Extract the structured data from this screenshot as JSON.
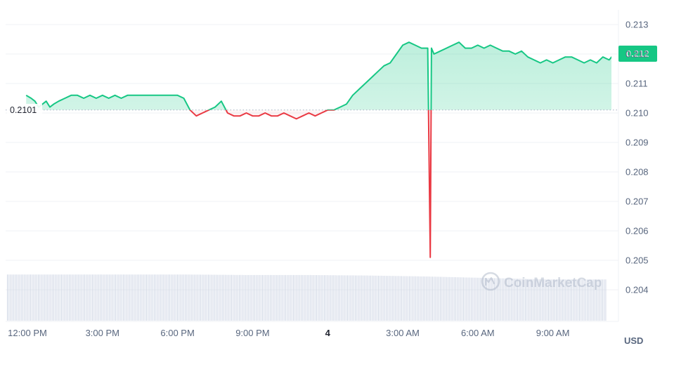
{
  "brand": {
    "watermark": "CoinMarketCap",
    "watermark_icon": "coinmarketcap-logo-icon"
  },
  "currency_label": "USD",
  "baseline_label": "0.2101",
  "current_price_label": "0.212",
  "colors": {
    "up": "#16c784",
    "down": "#ea3943",
    "volume": "#cfd6e4",
    "grid": "#eff2f5",
    "axis_text": "#58667e"
  },
  "chart_data": {
    "type": "line",
    "title": "",
    "xlabel": "",
    "ylabel": "",
    "x_ticks": [
      "12:00 PM",
      "3:00 PM",
      "6:00 PM",
      "9:00 PM",
      "4",
      "3:00 AM",
      "6:00 AM",
      "9:00 AM"
    ],
    "x_tick_hours": [
      0,
      3,
      6,
      9,
      12,
      15,
      18,
      21
    ],
    "y_ticks": [
      "0.213",
      "0.212",
      "0.211",
      "0.210",
      "0.209",
      "0.208",
      "0.207",
      "0.206",
      "0.205",
      "0.204"
    ],
    "ylim": [
      0.2036,
      0.2135
    ],
    "xlim_hours": [
      0,
      24
    ],
    "baseline": 0.2101,
    "grid": true,
    "series": [
      {
        "x_hours": [
          -0.05,
          0.15,
          0.3,
          0.45,
          0.6,
          0.75,
          0.9,
          1.05,
          1.25,
          1.5,
          1.75,
          2.0,
          2.25,
          2.5,
          2.75,
          3.0,
          3.25,
          3.5,
          3.75,
          4.0,
          4.25,
          4.5,
          4.75,
          5.0,
          5.25,
          5.5,
          5.75,
          6.0,
          6.25,
          6.5,
          6.75,
          7.0,
          7.25,
          7.5,
          7.75,
          8.0,
          8.25,
          8.5,
          8.75,
          9.0,
          9.25,
          9.5,
          9.75,
          10.0,
          10.25,
          10.5,
          10.75,
          11.0,
          11.25,
          11.5,
          11.75,
          12.0,
          12.25,
          12.5,
          12.75,
          13.0,
          13.25,
          13.5,
          13.75,
          14.0,
          14.25,
          14.5,
          14.75,
          15.0,
          15.25,
          15.5,
          15.75,
          16.0,
          16.1,
          16.15,
          16.25,
          16.5,
          16.75,
          17.0,
          17.25,
          17.5,
          17.75,
          18.0,
          18.25,
          18.5,
          18.75,
          19.0,
          19.25,
          19.5,
          19.75,
          20.0,
          20.25,
          20.5,
          20.75,
          21.0,
          21.25,
          21.5,
          21.75,
          22.0,
          22.25,
          22.5,
          22.75,
          23.0,
          23.25,
          23.45,
          23.85
        ],
        "values": [
          0.2106,
          0.2105,
          0.2104,
          0.2102,
          0.2103,
          0.2104,
          0.2102,
          0.2103,
          0.2104,
          0.2105,
          0.2106,
          0.2106,
          0.2105,
          0.2106,
          0.2105,
          0.2106,
          0.2105,
          0.2106,
          0.2105,
          0.2106,
          0.2106,
          0.2106,
          0.2106,
          0.2106,
          0.2106,
          0.2106,
          0.2106,
          0.2106,
          0.2105,
          0.2101,
          0.2099,
          0.21,
          0.2101,
          0.2102,
          0.2104,
          0.21,
          0.2099,
          0.2099,
          0.21,
          0.2099,
          0.2099,
          0.21,
          0.2099,
          0.2099,
          0.21,
          0.2099,
          0.2098,
          0.2099,
          0.21,
          0.2099,
          0.21,
          0.2101,
          0.2101,
          0.2102,
          0.2103,
          0.2106,
          0.2108,
          0.211,
          0.2112,
          0.2114,
          0.2116,
          0.2117,
          0.212,
          0.2123,
          0.2124,
          0.2123,
          0.2122,
          0.2122,
          0.2051,
          0.2122,
          0.212,
          0.2121,
          0.2122,
          0.2123,
          0.2124,
          0.2122,
          0.2122,
          0.2123,
          0.2122,
          0.2123,
          0.2122,
          0.2121,
          0.2121,
          0.212,
          0.2121,
          0.2119,
          0.2118,
          0.2117,
          0.2118,
          0.2117,
          0.2118,
          0.2119,
          0.2119,
          0.2118,
          0.2117,
          0.2118,
          0.2117,
          0.2119,
          0.2118,
          0.212,
          0.212
        ]
      }
    ],
    "volume_relative": [
      0.94,
      0.94,
      0.94,
      0.94,
      0.93,
      0.93,
      0.92,
      0.9,
      0.87,
      0.84,
      0.84
    ]
  }
}
